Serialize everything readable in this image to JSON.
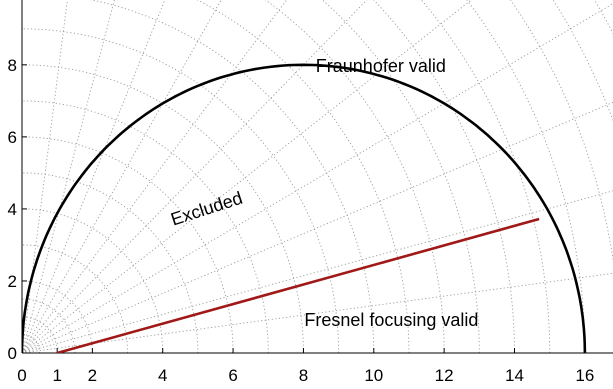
{
  "chart_data": {
    "type": "line",
    "title": "",
    "xlabel": "",
    "ylabel": "",
    "xlim": [
      0,
      16.8
    ],
    "ylim": [
      0,
      9.8
    ],
    "xticks": [
      0,
      1,
      2,
      4,
      6,
      8,
      10,
      12,
      14,
      16
    ],
    "yticks": [
      0,
      2,
      4,
      6,
      8
    ],
    "grid": "polar dotted (concentric arcs about origin, radial lines every 7.5°)",
    "grid_radii": [
      0.5,
      1,
      1.5,
      2,
      3,
      4,
      5,
      6,
      7,
      8,
      9,
      10,
      11,
      12,
      13,
      14,
      15,
      16,
      17,
      18,
      19
    ],
    "grid_angles_deg": [
      7.5,
      15,
      22.5,
      30,
      37.5,
      45,
      52.5,
      60,
      67.5,
      75,
      82.5
    ],
    "boundary_curve": {
      "description": "semicircle, diameter from x=0 to x=16 on the x-axis",
      "center": [
        8.0,
        0
      ],
      "radius": 8.0,
      "x": [
        0,
        0.3,
        1,
        2,
        3,
        4,
        5,
        6,
        7,
        8,
        9,
        10,
        11,
        12,
        13,
        14,
        15,
        15.7,
        16
      ],
      "y": [
        0,
        2.17,
        3.87,
        5.29,
        6.24,
        6.93,
        7.42,
        7.75,
        7.94,
        8.0,
        7.94,
        7.75,
        7.42,
        6.93,
        6.24,
        5.29,
        3.87,
        2.17,
        0
      ],
      "color": "#000000"
    },
    "focusing_line": {
      "x": [
        1.0,
        14.7
      ],
      "y": [
        0.0,
        3.72
      ],
      "color": "#a01818"
    },
    "annotations": [
      {
        "text": "Fraunhofer valid",
        "x": 10.2,
        "y": 7.8,
        "rotation": 0
      },
      {
        "text": "Excluded",
        "x": 5.3,
        "y": 3.85,
        "rotation": -18
      },
      {
        "text": "Fresnel focusing valid",
        "x": 10.5,
        "y": 0.75,
        "rotation": 0
      }
    ],
    "colors": {
      "boundary": "#000000",
      "focusing": "#a01818",
      "grid": "#9a9a9a"
    }
  }
}
